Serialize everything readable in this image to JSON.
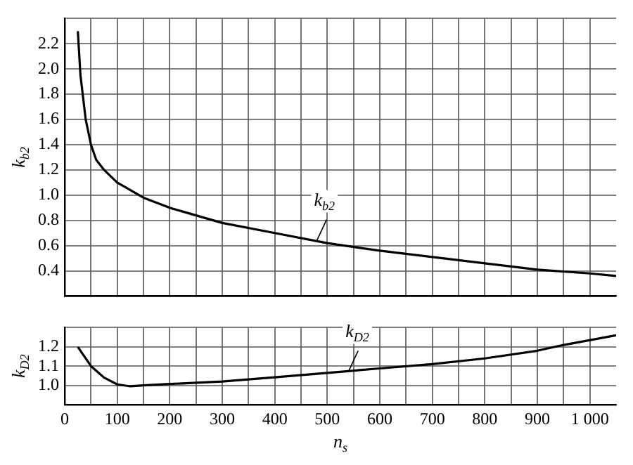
{
  "chart_data": [
    {
      "type": "line",
      "ylabel": "k$_{b2}$",
      "x": [
        25,
        30,
        40,
        50,
        60,
        75,
        100,
        150,
        200,
        250,
        300,
        400,
        500,
        600,
        700,
        800,
        900,
        1000,
        1050
      ],
      "series": [
        {
          "color": "#000000",
          "values": [
            2.3,
            1.95,
            1.6,
            1.4,
            1.28,
            1.2,
            1.1,
            0.98,
            0.9,
            0.84,
            0.78,
            0.7,
            0.62,
            0.56,
            0.51,
            0.46,
            0.41,
            0.38,
            0.36
          ]
        }
      ],
      "annotations": [
        {
          "text": "k$_{b2}$",
          "x": 480,
          "y": 0.64
        }
      ],
      "xlim": [
        0,
        1050
      ],
      "xticks": [
        {
          "value": 0,
          "label": null
        },
        {
          "value": 50,
          "label": null
        },
        {
          "value": 100,
          "label": null
        },
        {
          "value": 150,
          "label": null
        },
        {
          "value": 200,
          "label": null
        },
        {
          "value": 250,
          "label": null
        },
        {
          "value": 300,
          "label": null
        },
        {
          "value": 350,
          "label": null
        },
        {
          "value": 400,
          "label": null
        },
        {
          "value": 450,
          "label": null
        },
        {
          "value": 500,
          "label": null
        },
        {
          "value": 550,
          "label": null
        },
        {
          "value": 600,
          "label": null
        },
        {
          "value": 650,
          "label": null
        },
        {
          "value": 700,
          "label": null
        },
        {
          "value": 750,
          "label": null
        },
        {
          "value": 800,
          "label": null
        },
        {
          "value": 850,
          "label": null
        },
        {
          "value": 900,
          "label": null
        },
        {
          "value": 950,
          "label": null
        },
        {
          "value": 1000,
          "label": null
        }
      ],
      "ylim": [
        0.2,
        2.4
      ],
      "yticks": [
        {
          "value": 0.2,
          "label": null
        },
        {
          "value": 0.4,
          "label": "0.4"
        },
        {
          "value": 0.6,
          "label": "0.6"
        },
        {
          "value": 0.8,
          "label": "0.8"
        },
        {
          "value": 1.0,
          "label": "1.0"
        },
        {
          "value": 1.2,
          "label": "1.2"
        },
        {
          "value": 1.4,
          "label": "1.4"
        },
        {
          "value": 1.6,
          "label": "1.6"
        },
        {
          "value": 1.8,
          "label": "1.8"
        },
        {
          "value": 2.0,
          "label": "2.0"
        },
        {
          "value": 2.2,
          "label": "2.2"
        },
        {
          "value": 2.4,
          "label": null
        }
      ],
      "tick_labels": "y",
      "grid": true,
      "legend": false,
      "marker": "none",
      "line_style": "solid"
    },
    {
      "type": "line",
      "ylabel": "k$_{D2}$",
      "xlabel": "n$_{s}$",
      "x": [
        25,
        50,
        75,
        100,
        125,
        150,
        200,
        300,
        400,
        500,
        600,
        700,
        800,
        900,
        950,
        1050
      ],
      "series": [
        {
          "color": "#000000",
          "values": [
            1.2,
            1.1,
            1.04,
            1.005,
            0.995,
            1.0,
            1.007,
            1.02,
            1.042,
            1.065,
            1.088,
            1.11,
            1.14,
            1.18,
            1.21,
            1.26
          ]
        }
      ],
      "annotations": [
        {
          "text": "k$_{D2}$",
          "x": 540,
          "y": 1.07
        }
      ],
      "xlim": [
        0,
        1050
      ],
      "xticks": [
        0,
        {
          "value": 50,
          "label": null
        },
        100,
        {
          "value": 150,
          "label": null
        },
        200,
        {
          "value": 250,
          "label": null
        },
        300,
        {
          "value": 350,
          "label": null
        },
        400,
        {
          "value": 450,
          "label": null
        },
        500,
        {
          "value": 550,
          "label": null
        },
        600,
        {
          "value": 650,
          "label": null
        },
        700,
        {
          "value": 750,
          "label": null
        },
        800,
        {
          "value": 850,
          "label": null
        },
        900,
        {
          "value": 950,
          "label": null
        },
        {
          "value": 1000,
          "label": "1 000"
        }
      ],
      "ylim": [
        0.9,
        1.3
      ],
      "yticks": [
        {
          "value": 0.9,
          "label": null
        },
        {
          "value": 1.0,
          "label": "1.0"
        },
        {
          "value": 1.1,
          "label": "1.1"
        },
        {
          "value": 1.2,
          "label": "1.2"
        },
        {
          "value": 1.3,
          "label": null
        }
      ],
      "grid": true,
      "legend": false,
      "marker": "none",
      "line_style": "solid"
    }
  ]
}
